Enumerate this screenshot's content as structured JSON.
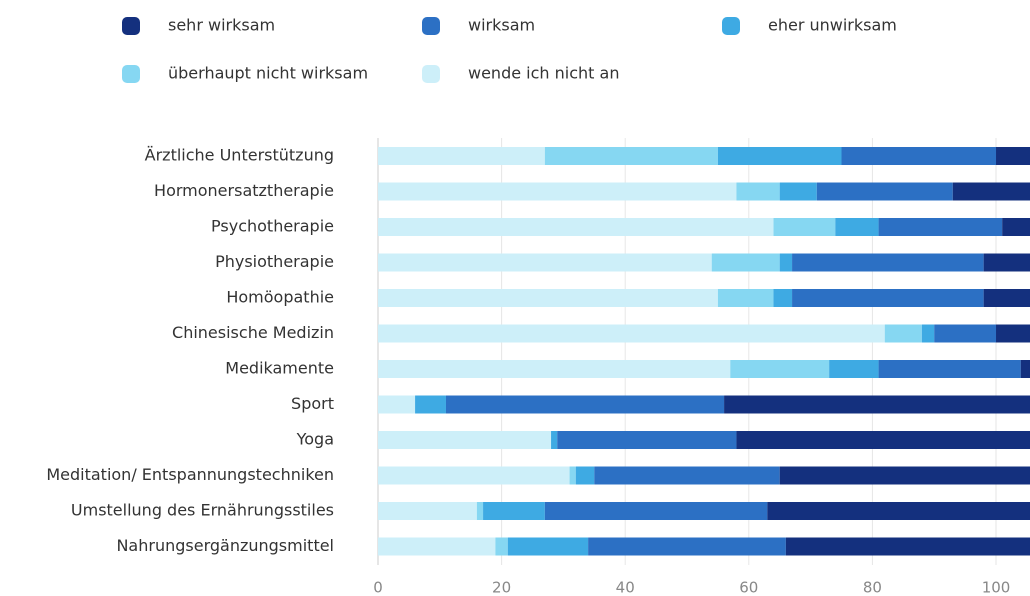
{
  "chart_data": {
    "type": "stacked_bar_horizontal",
    "categories": [
      "Ärztliche Unterstützung",
      "Hormonersatztherapie",
      "Psychotherapie",
      "Physiotherapie",
      "Homöopathie",
      "Chinesische Medizin",
      "Medikamente",
      "Sport",
      "Yoga",
      "Meditation/ Entspannungstechniken",
      "Umstellung des Ernährungsstiles",
      "Nahrungsergänzungsmittel"
    ],
    "series": [
      {
        "name": "sehr wirksam",
        "color": "#14307e",
        "values": [
          5.5,
          12.5,
          4.5,
          7.5,
          7.5,
          5.5,
          1.5,
          49.5,
          47.5,
          40.5,
          42.5,
          39.5
        ]
      },
      {
        "name": "wirksam",
        "color": "#2c70c4",
        "values": [
          25,
          22,
          20,
          31,
          31,
          10,
          23,
          45,
          29,
          30,
          36,
          32
        ]
      },
      {
        "name": "eher unwirksam",
        "color": "#3eaae3",
        "values": [
          20,
          6,
          7,
          2,
          3,
          2,
          8,
          5,
          1,
          3,
          10,
          13
        ]
      },
      {
        "name": "überhaupt nicht wirksam",
        "color": "#86d7f2",
        "values": [
          28,
          7,
          10,
          11,
          9,
          6,
          16,
          0,
          0,
          1,
          1,
          2
        ]
      },
      {
        "name": "wende ich nicht an",
        "color": "#cdeff9",
        "values": [
          27,
          58,
          64,
          54,
          55,
          82,
          57,
          6,
          28,
          31,
          16,
          19
        ]
      }
    ],
    "xlim": [
      0,
      105.5
    ],
    "xticks": [
      0,
      20,
      40,
      60,
      80,
      100
    ],
    "grid": true
  }
}
